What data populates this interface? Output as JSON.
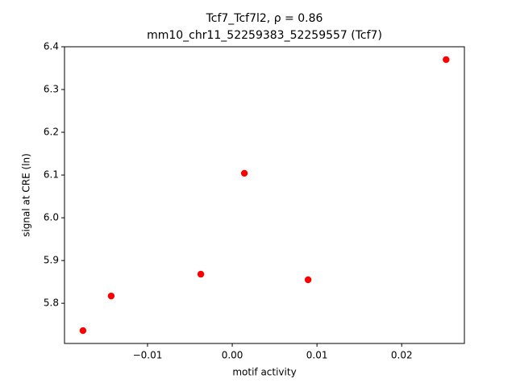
{
  "chart_data": {
    "type": "scatter",
    "title": "Tcf7_Tcf7l2, ρ = 0.86",
    "subtitle": "mm10_chr11_52259383_52259557 (Tcf7)",
    "x_label": "motif activity",
    "y_label": "signal at CRE (ln)",
    "x": [
      -0.01762,
      -0.01429,
      -0.00371,
      0.00143,
      0.00895,
      0.02524
    ],
    "values": [
      5.736,
      5.817,
      5.868,
      6.104,
      5.855,
      6.37
    ],
    "color": "#ff0000",
    "xlim": [
      -0.0198,
      0.0274
    ],
    "ylim": [
      5.706,
      6.4
    ],
    "xticks": [
      {
        "value": -0.01,
        "label": "−0.01"
      },
      {
        "value": 0,
        "label": "0.00"
      },
      0.01,
      0.02
    ],
    "yticks": [
      5.8,
      5.9,
      {
        "value": 6,
        "label": "6.0"
      },
      6.1,
      6.2,
      6.3,
      6.4
    ],
    "grid": false
  }
}
